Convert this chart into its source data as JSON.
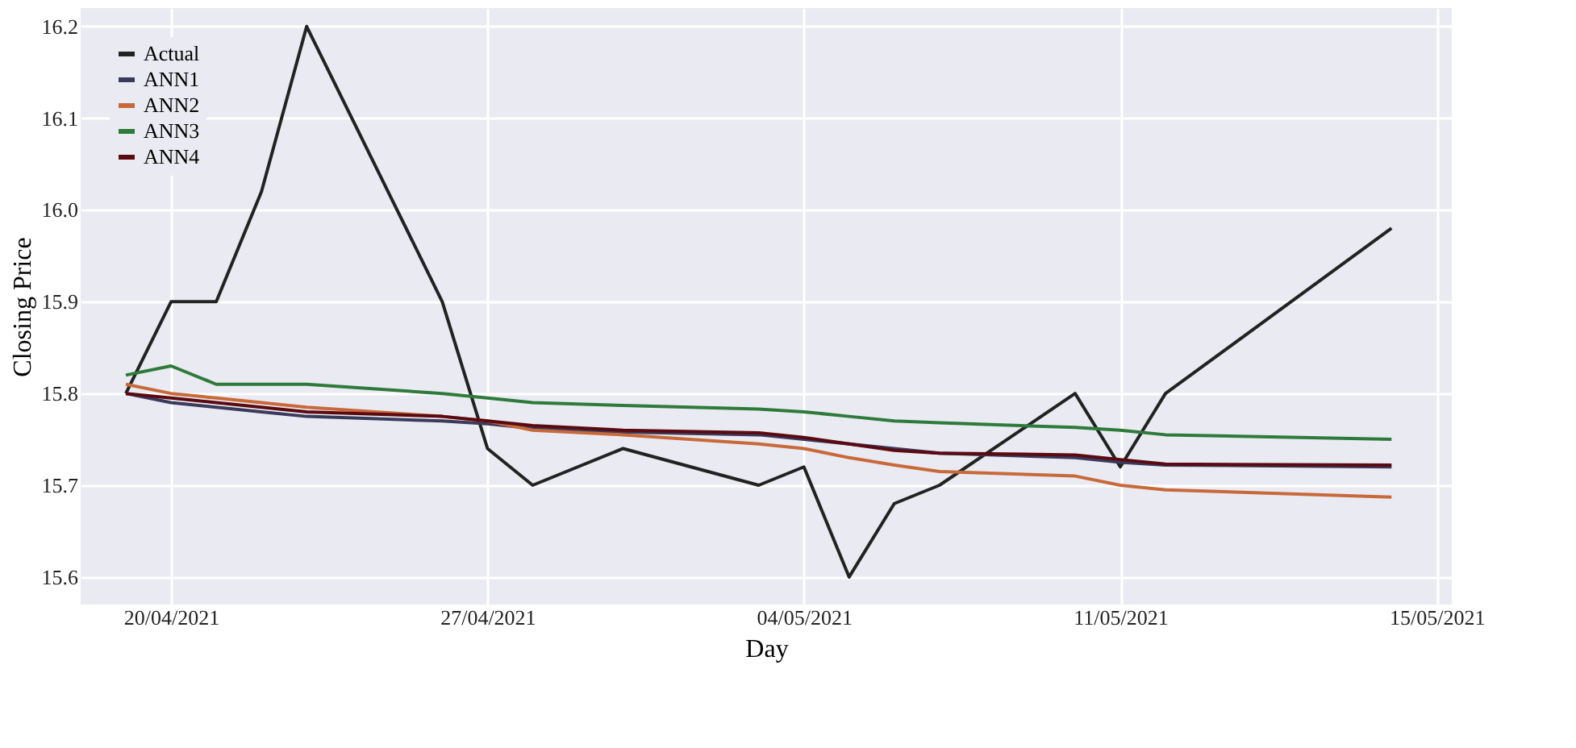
{
  "chart_data": {
    "type": "line",
    "xlabel": "Day",
    "ylabel": "Closing Price",
    "x": [
      "2021-04-19",
      "2021-04-20",
      "2021-04-21",
      "2021-04-22",
      "2021-04-23",
      "2021-04-26",
      "2021-04-27",
      "2021-04-28",
      "2021-04-30",
      "2021-05-03",
      "2021-05-04",
      "2021-05-05",
      "2021-05-06",
      "2021-05-07",
      "2021-05-10",
      "2021-05-11",
      "2021-05-12",
      "2021-05-17"
    ],
    "series": [
      {
        "name": "Actual",
        "color": "#222222",
        "values": [
          15.8,
          15.9,
          15.9,
          16.02,
          16.2,
          15.9,
          15.74,
          15.7,
          15.74,
          15.7,
          15.72,
          15.6,
          15.68,
          15.7,
          15.8,
          15.72,
          15.8,
          15.98
        ]
      },
      {
        "name": "ANN1",
        "color": "#3a3a5c",
        "values": [
          15.8,
          15.79,
          15.785,
          15.78,
          15.775,
          15.77,
          15.767,
          15.762,
          15.758,
          15.755,
          15.75,
          15.745,
          15.74,
          15.735,
          15.73,
          15.725,
          15.722,
          15.72
        ]
      },
      {
        "name": "ANN2",
        "color": "#c8693a",
        "values": [
          15.81,
          15.8,
          15.795,
          15.79,
          15.785,
          15.775,
          15.77,
          15.76,
          15.755,
          15.745,
          15.74,
          15.73,
          15.722,
          15.715,
          15.71,
          15.7,
          15.695,
          15.687
        ]
      },
      {
        "name": "ANN3",
        "color": "#2e7a3a",
        "values": [
          15.82,
          15.83,
          15.81,
          15.81,
          15.81,
          15.8,
          15.795,
          15.79,
          15.787,
          15.783,
          15.78,
          15.775,
          15.77,
          15.768,
          15.763,
          15.76,
          15.755,
          15.75
        ]
      },
      {
        "name": "ANN4",
        "color": "#5a0a10",
        "values": [
          15.8,
          15.795,
          15.79,
          15.785,
          15.78,
          15.775,
          15.77,
          15.765,
          15.76,
          15.757,
          15.752,
          15.745,
          15.738,
          15.735,
          15.733,
          15.728,
          15.723,
          15.722
        ]
      }
    ],
    "xlim": [
      "2021-04-18",
      "2021-05-18T08:00"
    ],
    "xticks": [
      {
        "value": "2021-04-20",
        "label": "20/04/2021"
      },
      {
        "value": "2021-04-27",
        "label": "27/04/2021"
      },
      {
        "value": "2021-05-04",
        "label": "04/05/2021"
      },
      {
        "value": "2021-05-11",
        "label": "11/05/2021"
      },
      {
        "value": "2021-05-18",
        "label": "15/05/2021"
      }
    ],
    "ylim": [
      15.57,
      16.22
    ],
    "yticks": [
      15.6,
      15.7,
      15.8,
      15.9,
      {
        "value": 16,
        "label": "16.0"
      },
      16.1,
      16.2
    ],
    "grid": true,
    "legend": "top left",
    "line_style": "solid",
    "marker": "none"
  }
}
